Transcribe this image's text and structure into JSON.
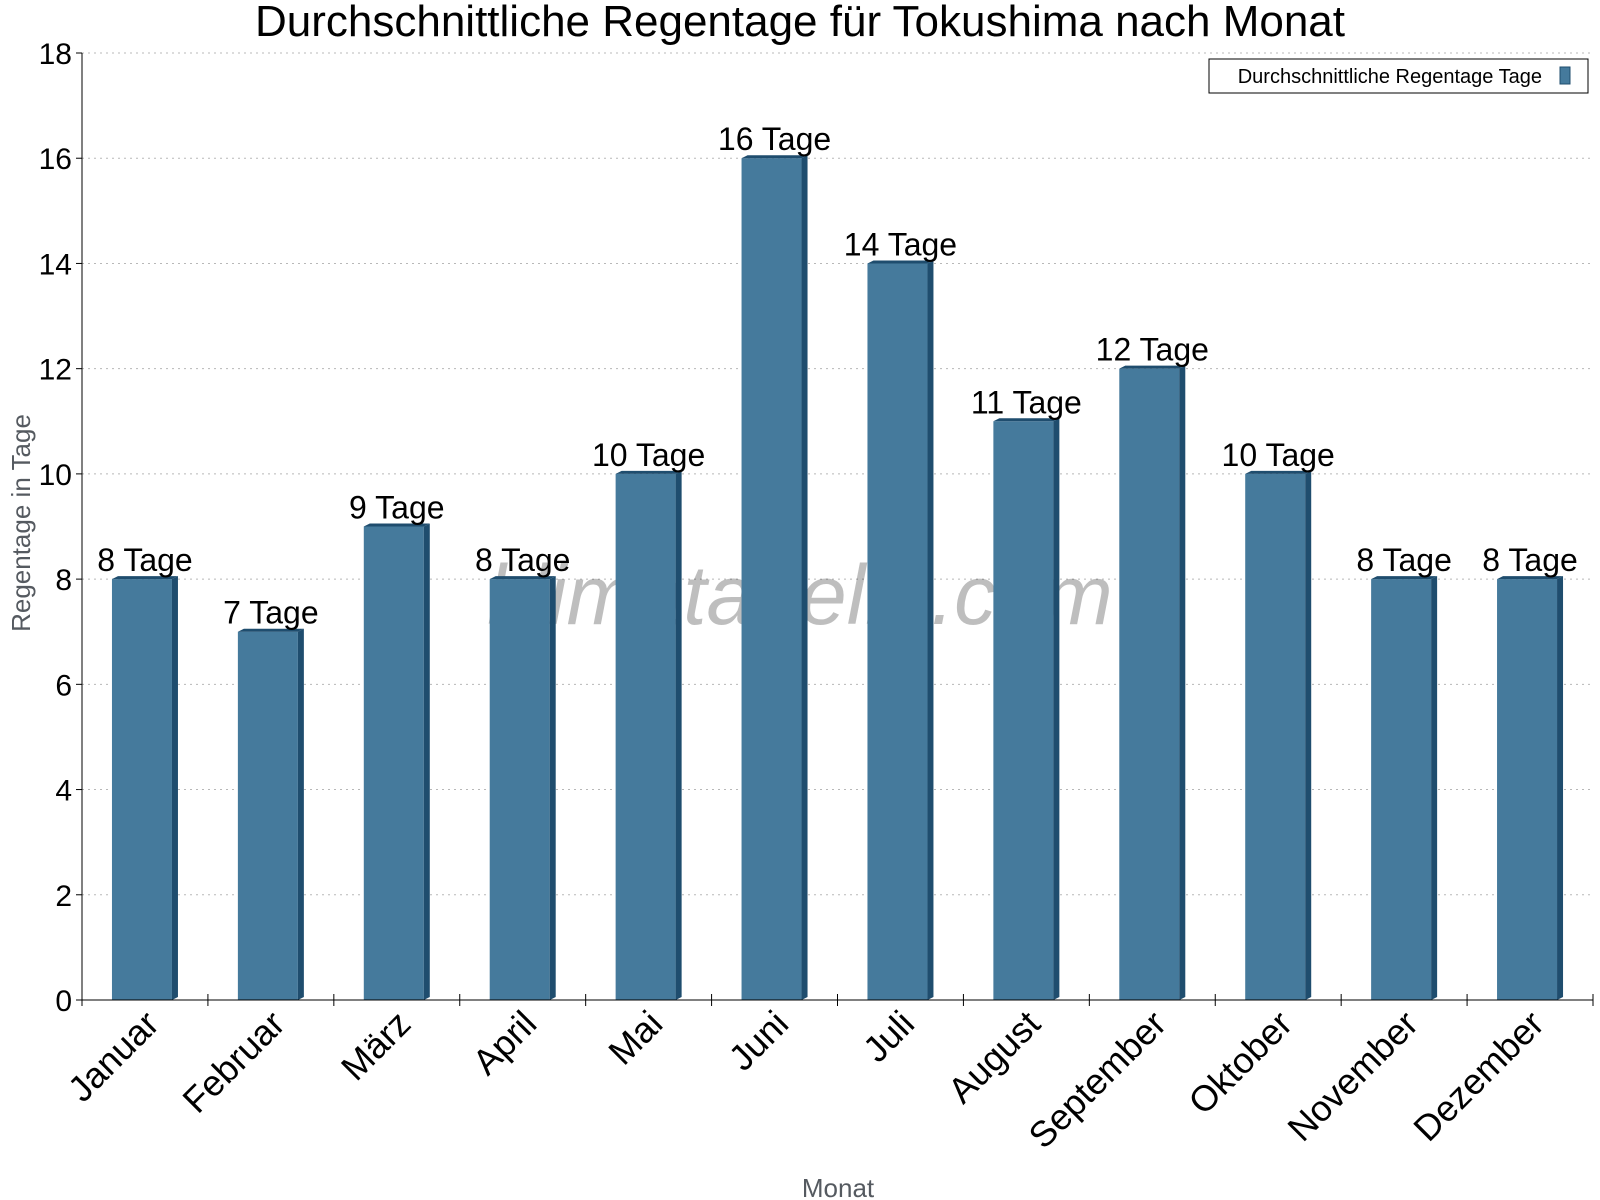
{
  "chart_data": {
    "type": "bar",
    "title": "Durchschnittliche Regentage für Tokushima nach Monat",
    "xlabel": "Monat",
    "ylabel": "Regentage in Tage",
    "ylim": [
      0,
      18
    ],
    "yticks": [
      0,
      2,
      4,
      6,
      8,
      10,
      12,
      14,
      16,
      18
    ],
    "grid": true,
    "legend_position": "top-right",
    "categories": [
      "Januar",
      "Februar",
      "März",
      "April",
      "Mai",
      "Juni",
      "Juli",
      "August",
      "September",
      "Oktober",
      "November",
      "Dezember"
    ],
    "series": [
      {
        "name": "Durchschnittliche Regentage Tage",
        "values": [
          8,
          7,
          9,
          8,
          10,
          16,
          14,
          11,
          12,
          10,
          8,
          8
        ],
        "data_labels": [
          "8 Tage",
          "7 Tage",
          "9 Tage",
          "8 Tage",
          "10 Tage",
          "16 Tage",
          "14 Tage",
          "11 Tage",
          "12 Tage",
          "10 Tage",
          "8 Tage",
          "8 Tage"
        ],
        "color": "#457a9c",
        "side_color": "#1f4d6e"
      }
    ]
  },
  "watermark": "klimatabelle.com"
}
